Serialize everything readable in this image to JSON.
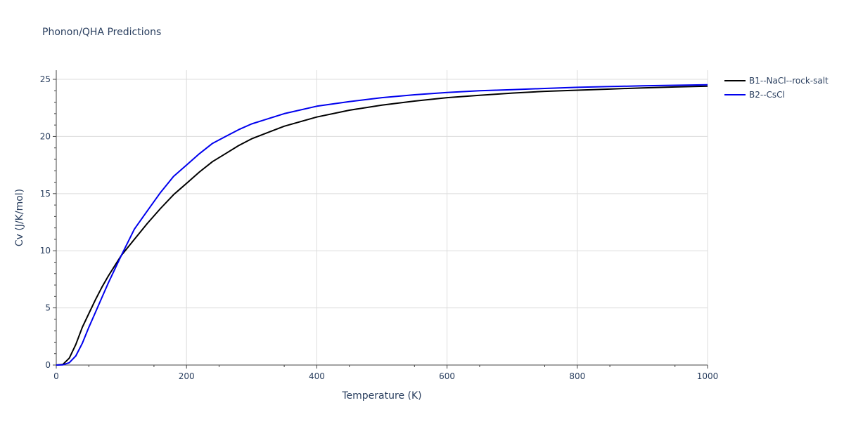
{
  "chart_data": {
    "type": "line",
    "title": "Phonon/QHA Predictions",
    "xlabel": "Temperature (K)",
    "ylabel": "Cv (J/K/mol)",
    "xlim": [
      0,
      1000
    ],
    "ylim": [
      0,
      25.8
    ],
    "xticks": [
      0,
      200,
      400,
      600,
      800,
      1000
    ],
    "xtick_labels": [
      "0",
      "200",
      "400",
      "600",
      "800",
      "1000"
    ],
    "yticks": [
      0,
      5,
      10,
      15,
      20,
      25
    ],
    "ytick_labels": [
      "0",
      "5",
      "10",
      "15",
      "20",
      "25"
    ],
    "grid": true,
    "legend_position": "top-right outside",
    "series": [
      {
        "name": "B1--NaCl--rock-salt",
        "color": "#000000",
        "x": [
          0,
          10,
          20,
          30,
          40,
          50,
          60,
          70,
          80,
          90,
          100,
          120,
          140,
          160,
          180,
          200,
          220,
          240,
          260,
          280,
          300,
          350,
          400,
          450,
          500,
          550,
          600,
          650,
          700,
          750,
          800,
          850,
          900,
          950,
          1000
        ],
        "y": [
          0,
          0.05,
          0.6,
          1.8,
          3.3,
          4.5,
          5.7,
          6.8,
          7.8,
          8.7,
          9.6,
          11.0,
          12.4,
          13.7,
          14.9,
          15.9,
          16.9,
          17.8,
          18.5,
          19.2,
          19.8,
          20.9,
          21.7,
          22.3,
          22.75,
          23.1,
          23.4,
          23.6,
          23.8,
          23.95,
          24.05,
          24.15,
          24.25,
          24.33,
          24.4
        ]
      },
      {
        "name": "B2--CsCl",
        "color": "#0000ee",
        "x": [
          0,
          10,
          20,
          30,
          40,
          50,
          60,
          70,
          80,
          90,
          100,
          120,
          140,
          160,
          180,
          200,
          220,
          240,
          260,
          280,
          300,
          350,
          400,
          450,
          500,
          550,
          600,
          650,
          700,
          750,
          800,
          850,
          900,
          950,
          1000
        ],
        "y": [
          0,
          0.02,
          0.2,
          0.8,
          1.9,
          3.3,
          4.6,
          5.9,
          7.2,
          8.4,
          9.6,
          11.9,
          13.5,
          15.1,
          16.5,
          17.5,
          18.5,
          19.4,
          20.0,
          20.6,
          21.1,
          22.0,
          22.65,
          23.05,
          23.4,
          23.65,
          23.85,
          24.0,
          24.1,
          24.2,
          24.3,
          24.37,
          24.43,
          24.48,
          24.52
        ]
      }
    ]
  }
}
